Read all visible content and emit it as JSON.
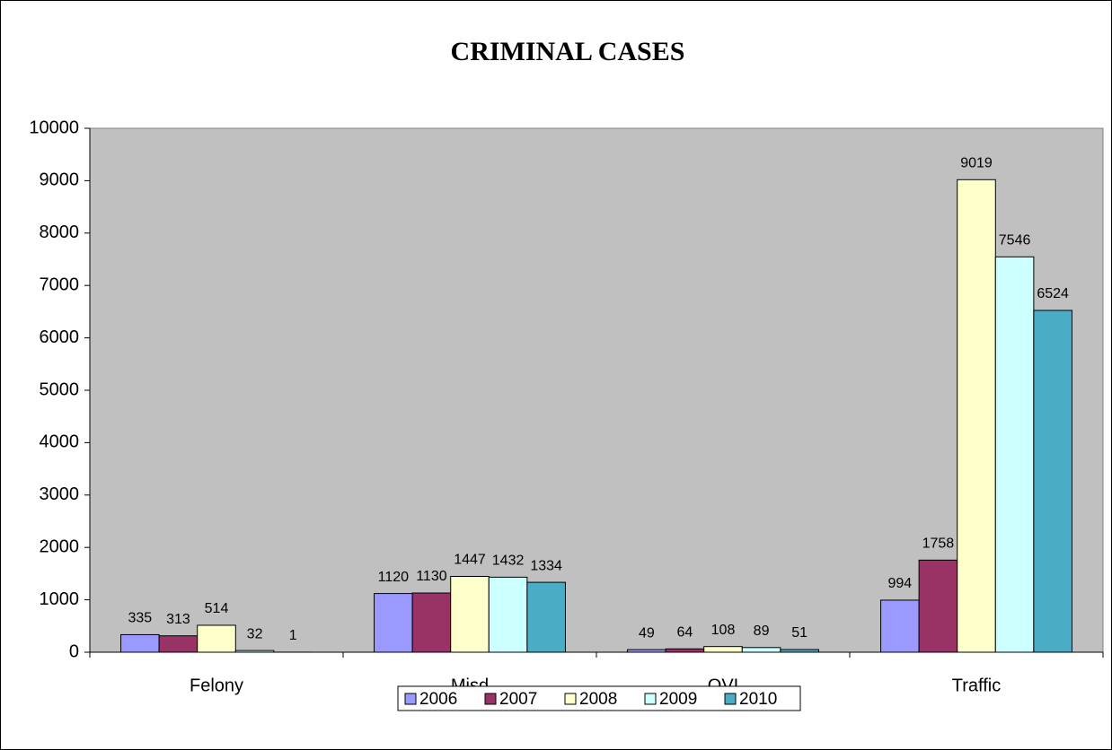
{
  "chart_data": {
    "type": "bar",
    "title": "CRIMINAL CASES",
    "categories": [
      "Felony",
      "Misd",
      "OVI",
      "Traffic"
    ],
    "series": [
      {
        "name": "2006",
        "color": "#9999ff",
        "values": [
          335,
          1120,
          49,
          994
        ]
      },
      {
        "name": "2007",
        "color": "#993366",
        "values": [
          313,
          1130,
          64,
          1758
        ]
      },
      {
        "name": "2008",
        "color": "#ffffcc",
        "values": [
          514,
          1447,
          108,
          9019
        ]
      },
      {
        "name": "2009",
        "color": "#ccffff",
        "values": [
          32,
          1432,
          89,
          7546
        ]
      },
      {
        "name": "2010",
        "color": "#4bacc6",
        "values": [
          1,
          1334,
          51,
          6524
        ]
      }
    ],
    "ylim": [
      0,
      10000
    ],
    "yticks": [
      0,
      1000,
      2000,
      3000,
      4000,
      5000,
      6000,
      7000,
      8000,
      9000,
      10000
    ],
    "grid": false,
    "legend": "bottom",
    "plot_background": "#c0c0c0"
  }
}
